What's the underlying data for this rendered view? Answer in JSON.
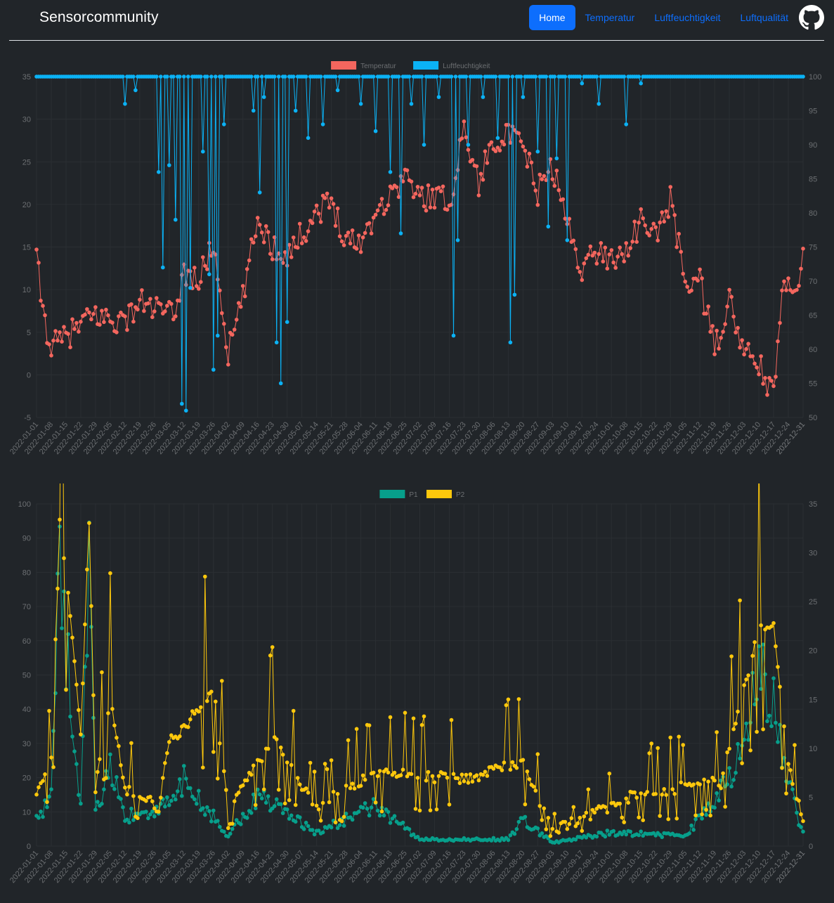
{
  "navbar": {
    "brand": "Sensorcommunity",
    "links": [
      {
        "label": "Home",
        "active": true
      },
      {
        "label": "Temperatur",
        "active": false
      },
      {
        "label": "Luftfeuchtigkeit",
        "active": false
      },
      {
        "label": "Luftqualität",
        "active": false
      }
    ],
    "github_icon": "github-icon"
  },
  "colors": {
    "background": "#212529",
    "nav_active": "#0d6efd",
    "temperatur": "#f4665e",
    "luftfeuchtigkeit": "#0bb2f5",
    "p1": "#079f8b",
    "p2": "#fec80c",
    "tick": "#6c6f72",
    "grid": "#2b2f33"
  },
  "chart_data": [
    {
      "type": "line",
      "x_start": "2022-01-01",
      "x_end": "2022-12-31",
      "x_tick_interval_days": 7,
      "series": [
        {
          "name": "Temperatur",
          "axis": "left",
          "key_values": [
            {
              "x": "2022-01-01",
              "y": 13.7
            },
            {
              "x": "2022-01-04",
              "y": 7.4
            },
            {
              "x": "2022-01-08",
              "y": 3.2
            },
            {
              "x": "2022-01-15",
              "y": 4.4
            },
            {
              "x": "2022-01-22",
              "y": 5.9
            },
            {
              "x": "2022-01-29",
              "y": 7.0
            },
            {
              "x": "2022-02-05",
              "y": 6.5
            },
            {
              "x": "2022-02-12",
              "y": 6.3
            },
            {
              "x": "2022-02-19",
              "y": 8.6
            },
            {
              "x": "2022-02-28",
              "y": 7.6
            },
            {
              "x": "2022-03-07",
              "y": 6.8
            },
            {
              "x": "2022-03-12",
              "y": 12.1
            },
            {
              "x": "2022-03-19",
              "y": 11.0
            },
            {
              "x": "2022-03-26",
              "y": 15.4
            },
            {
              "x": "2022-04-02",
              "y": 2.5
            },
            {
              "x": "2022-04-09",
              "y": 9.0
            },
            {
              "x": "2022-04-16",
              "y": 18.4
            },
            {
              "x": "2022-04-23",
              "y": 15.0
            },
            {
              "x": "2022-04-30",
              "y": 14.2
            },
            {
              "x": "2022-05-07",
              "y": 16.5
            },
            {
              "x": "2022-05-14",
              "y": 19.2
            },
            {
              "x": "2022-05-21",
              "y": 20.3
            },
            {
              "x": "2022-05-28",
              "y": 16.0
            },
            {
              "x": "2022-06-04",
              "y": 15.6
            },
            {
              "x": "2022-06-11",
              "y": 19.2
            },
            {
              "x": "2022-06-18",
              "y": 21.0
            },
            {
              "x": "2022-06-25",
              "y": 23.5
            },
            {
              "x": "2022-07-02",
              "y": 20.6
            },
            {
              "x": "2022-07-09",
              "y": 21.2
            },
            {
              "x": "2022-07-16",
              "y": 20.1
            },
            {
              "x": "2022-07-23",
              "y": 29.0
            },
            {
              "x": "2022-07-30",
              "y": 22.4
            },
            {
              "x": "2022-08-06",
              "y": 27.8
            },
            {
              "x": "2022-08-13",
              "y": 28.0
            },
            {
              "x": "2022-08-20",
              "y": 26.8
            },
            {
              "x": "2022-08-27",
              "y": 21.5
            },
            {
              "x": "2022-09-03",
              "y": 24.5
            },
            {
              "x": "2022-09-10",
              "y": 17.7
            },
            {
              "x": "2022-09-17",
              "y": 12.6
            },
            {
              "x": "2022-09-24",
              "y": 14.5
            },
            {
              "x": "2022-10-01",
              "y": 13.6
            },
            {
              "x": "2022-10-08",
              "y": 14.8
            },
            {
              "x": "2022-10-15",
              "y": 17.9
            },
            {
              "x": "2022-10-22",
              "y": 16.4
            },
            {
              "x": "2022-10-29",
              "y": 20.5
            },
            {
              "x": "2022-11-05",
              "y": 11.0
            },
            {
              "x": "2022-11-12",
              "y": 11.0
            },
            {
              "x": "2022-11-19",
              "y": 3.0
            },
            {
              "x": "2022-11-26",
              "y": 8.7
            },
            {
              "x": "2022-12-03",
              "y": 2.4
            },
            {
              "x": "2022-12-10",
              "y": 1.3
            },
            {
              "x": "2022-12-17",
              "y": -2.7
            },
            {
              "x": "2022-12-21",
              "y": 9.8
            },
            {
              "x": "2022-12-28",
              "y": 10.0
            },
            {
              "x": "2022-12-31",
              "y": 16.0
            }
          ]
        },
        {
          "name": "Luftfeuchtigkeit",
          "axis": "right",
          "baseline": 100,
          "dips": [
            {
              "x": "2022-02-12",
              "y": 96
            },
            {
              "x": "2022-02-17",
              "y": 98
            },
            {
              "x": "2022-02-28",
              "y": 86
            },
            {
              "x": "2022-03-02",
              "y": 72
            },
            {
              "x": "2022-03-05",
              "y": 87
            },
            {
              "x": "2022-03-08",
              "y": 79
            },
            {
              "x": "2022-03-11",
              "y": 52
            },
            {
              "x": "2022-03-13",
              "y": 51
            },
            {
              "x": "2022-03-15",
              "y": 69
            },
            {
              "x": "2022-03-21",
              "y": 89
            },
            {
              "x": "2022-03-24",
              "y": 71
            },
            {
              "x": "2022-03-26",
              "y": 57
            },
            {
              "x": "2022-03-28",
              "y": 62
            },
            {
              "x": "2022-03-31",
              "y": 93
            },
            {
              "x": "2022-04-14",
              "y": 95
            },
            {
              "x": "2022-04-17",
              "y": 83
            },
            {
              "x": "2022-04-19",
              "y": 97
            },
            {
              "x": "2022-04-25",
              "y": 61
            },
            {
              "x": "2022-04-27",
              "y": 55
            },
            {
              "x": "2022-04-30",
              "y": 64
            },
            {
              "x": "2022-05-04",
              "y": 95
            },
            {
              "x": "2022-05-10",
              "y": 91
            },
            {
              "x": "2022-05-17",
              "y": 93
            },
            {
              "x": "2022-05-24",
              "y": 98
            },
            {
              "x": "2022-06-04",
              "y": 96
            },
            {
              "x": "2022-06-11",
              "y": 92
            },
            {
              "x": "2022-06-18",
              "y": 86
            },
            {
              "x": "2022-06-23",
              "y": 77
            },
            {
              "x": "2022-06-28",
              "y": 96
            },
            {
              "x": "2022-07-04",
              "y": 90
            },
            {
              "x": "2022-07-11",
              "y": 97
            },
            {
              "x": "2022-07-18",
              "y": 62
            },
            {
              "x": "2022-07-20",
              "y": 76
            },
            {
              "x": "2022-07-25",
              "y": 90
            },
            {
              "x": "2022-08-01",
              "y": 97
            },
            {
              "x": "2022-08-08",
              "y": 91
            },
            {
              "x": "2022-08-14",
              "y": 61
            },
            {
              "x": "2022-08-16",
              "y": 68
            },
            {
              "x": "2022-08-20",
              "y": 97
            },
            {
              "x": "2022-08-27",
              "y": 89
            },
            {
              "x": "2022-09-01",
              "y": 78
            },
            {
              "x": "2022-09-05",
              "y": 88
            },
            {
              "x": "2022-09-10",
              "y": 76
            },
            {
              "x": "2022-09-17",
              "y": 99
            },
            {
              "x": "2022-09-25",
              "y": 96
            },
            {
              "x": "2022-10-08",
              "y": 93
            },
            {
              "x": "2022-10-15",
              "y": 99
            }
          ]
        }
      ],
      "y_left": {
        "min": -5,
        "max": 35,
        "ticks": [
          -5,
          0,
          5,
          10,
          15,
          20,
          25,
          30,
          35
        ]
      },
      "y_right": {
        "min": 50,
        "max": 100,
        "ticks": [
          50,
          55,
          60,
          65,
          70,
          75,
          80,
          85,
          90,
          95,
          100
        ]
      },
      "legend_position": "top",
      "grid": true
    },
    {
      "type": "line",
      "x_start": "2022-01-01",
      "x_end": "2022-12-31",
      "x_tick_interval_days": 7,
      "series": [
        {
          "name": "P1",
          "axis": "left",
          "key_values": [
            {
              "x": "2022-01-01",
              "y": 8.0
            },
            {
              "x": "2022-01-08",
              "y": 14.0
            },
            {
              "x": "2022-01-12",
              "y": 92.0
            },
            {
              "x": "2022-01-15",
              "y": 59.0
            },
            {
              "x": "2022-01-22",
              "y": 12.0
            },
            {
              "x": "2022-01-26",
              "y": 91.0
            },
            {
              "x": "2022-01-29",
              "y": 9.0
            },
            {
              "x": "2022-02-05",
              "y": 25.0
            },
            {
              "x": "2022-02-12",
              "y": 9.0
            },
            {
              "x": "2022-02-28",
              "y": 10.0
            },
            {
              "x": "2022-03-12",
              "y": 20.0
            },
            {
              "x": "2022-04-02",
              "y": 3.0
            },
            {
              "x": "2022-04-16",
              "y": 15.0
            },
            {
              "x": "2022-05-14",
              "y": 4.0
            },
            {
              "x": "2022-06-11",
              "y": 12.0
            },
            {
              "x": "2022-07-02",
              "y": 2.0
            },
            {
              "x": "2022-08-13",
              "y": 2.0
            },
            {
              "x": "2022-08-20",
              "y": 8.0
            },
            {
              "x": "2022-09-03",
              "y": 1.0
            },
            {
              "x": "2022-10-01",
              "y": 4.0
            },
            {
              "x": "2022-11-05",
              "y": 3.0
            },
            {
              "x": "2022-11-28",
              "y": 21.0
            },
            {
              "x": "2022-12-10",
              "y": 52.0
            },
            {
              "x": "2022-12-17",
              "y": 45.0
            },
            {
              "x": "2022-12-24",
              "y": 18.0
            },
            {
              "x": "2022-12-31",
              "y": 4.0
            }
          ]
        },
        {
          "name": "P2",
          "axis": "right",
          "key_values": [
            {
              "x": "2022-01-01",
              "y": 5.0
            },
            {
              "x": "2022-01-08",
              "y": 8.5
            },
            {
              "x": "2022-01-12",
              "y": 33.0
            },
            {
              "x": "2022-01-15",
              "y": 28.5
            },
            {
              "x": "2022-01-22",
              "y": 11.0
            },
            {
              "x": "2022-01-26",
              "y": 33.5
            },
            {
              "x": "2022-01-29",
              "y": 6.0
            },
            {
              "x": "2022-02-05",
              "y": 15.5
            },
            {
              "x": "2022-02-12",
              "y": 6.0
            },
            {
              "x": "2022-02-28",
              "y": 4.0
            },
            {
              "x": "2022-03-05",
              "y": 10.5
            },
            {
              "x": "2022-03-19",
              "y": 14.0
            },
            {
              "x": "2022-03-26",
              "y": 16.5
            },
            {
              "x": "2022-04-02",
              "y": 3.5
            },
            {
              "x": "2022-04-23",
              "y": 11.0
            },
            {
              "x": "2022-05-14",
              "y": 4.0
            },
            {
              "x": "2022-06-11",
              "y": 7.5
            },
            {
              "x": "2022-07-23",
              "y": 6.8
            },
            {
              "x": "2022-08-20",
              "y": 8.8
            },
            {
              "x": "2022-09-03",
              "y": 1.5
            },
            {
              "x": "2022-10-15",
              "y": 5.5
            },
            {
              "x": "2022-11-22",
              "y": 6.5
            },
            {
              "x": "2022-12-03",
              "y": 16.0
            },
            {
              "x": "2022-12-10",
              "y": 22.5
            },
            {
              "x": "2022-12-17",
              "y": 22.5
            },
            {
              "x": "2022-12-24",
              "y": 8.0
            },
            {
              "x": "2022-12-31",
              "y": 2.5
            }
          ]
        }
      ],
      "y_left": {
        "min": 0,
        "max": 100,
        "ticks": [
          0,
          10,
          20,
          30,
          40,
          50,
          60,
          70,
          80,
          90,
          100
        ]
      },
      "y_right": {
        "min": 0,
        "max": 35,
        "ticks": [
          0,
          5,
          10,
          15,
          20,
          25,
          30,
          35
        ]
      },
      "legend_position": "top",
      "grid": true
    }
  ]
}
